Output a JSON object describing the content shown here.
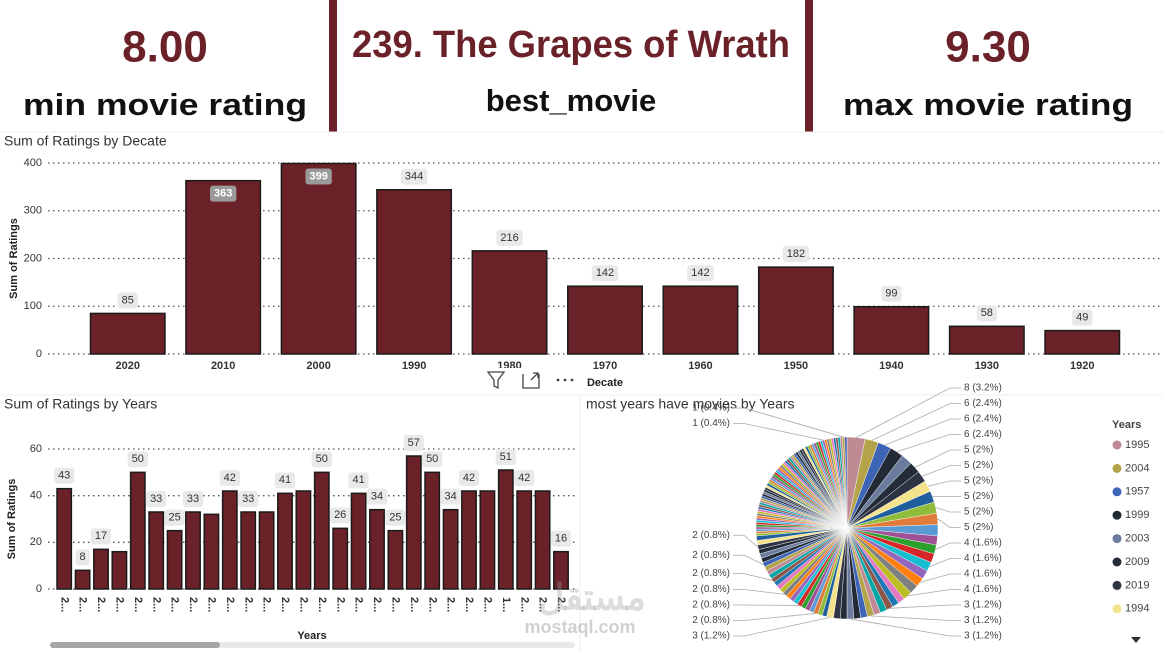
{
  "cards": [
    {
      "value": "8.00",
      "label": "min movie rating"
    },
    {
      "value": "239. The Grapes of Wrath",
      "label": "best_movie"
    },
    {
      "value": "9.30",
      "label": "max movie rating"
    }
  ],
  "watermark": {
    "arabic": "مستقل",
    "latin": "mostaql.com"
  },
  "chart_data": [
    {
      "type": "bar",
      "title": "Sum of Ratings by Decate",
      "x_label": "Decate",
      "y_label": "Sum of Ratings",
      "categories": [
        "2020",
        "2010",
        "2000",
        "1990",
        "1980",
        "1970",
        "1960",
        "1950",
        "1940",
        "1930",
        "1920"
      ],
      "values": [
        85,
        363,
        399,
        344,
        216,
        142,
        142,
        182,
        99,
        58,
        49
      ],
      "color": "#6b2128",
      "ylim": [
        0,
        400
      ],
      "yticks": [
        0,
        100,
        200,
        300,
        400
      ],
      "grid": true
    },
    {
      "type": "bar",
      "title": "Sum of Ratings by Years",
      "x_label": "Years",
      "y_label": "Sum of Ratings",
      "categories": [
        "2...",
        "2...",
        "2...",
        "2...",
        "2...",
        "2...",
        "2...",
        "2...",
        "2...",
        "2...",
        "2...",
        "2...",
        "2...",
        "2...",
        "2...",
        "2...",
        "2...",
        "2...",
        "2...",
        "2...",
        "2...",
        "2...",
        "2...",
        "2...",
        "1...",
        "2...",
        "2...",
        "2..."
      ],
      "values": [
        43,
        8,
        17,
        16,
        50,
        33,
        25,
        33,
        32,
        42,
        33,
        33,
        41,
        42,
        50,
        26,
        41,
        34,
        25,
        57,
        50,
        34,
        42,
        42,
        51,
        42,
        42,
        16
      ],
      "value_labels": [
        "43",
        "8",
        "17",
        null,
        "50",
        "33",
        "25",
        "33",
        null,
        "42",
        "33",
        null,
        "41",
        null,
        "50",
        "26",
        "41",
        "34",
        "25",
        "57",
        "50",
        "34",
        "42",
        null,
        "51",
        "42",
        null,
        "16"
      ],
      "color": "#6b2128",
      "ylim": [
        0,
        60
      ],
      "yticks": [
        0,
        20,
        40,
        60
      ],
      "grid": true
    },
    {
      "type": "pie",
      "title": "most years have movies by Years",
      "legend_title": "Years",
      "legend": "right",
      "categories": [
        "1995",
        "2004",
        "1957",
        "1999",
        "2003",
        "2009",
        "2019",
        "1994",
        null,
        null,
        null,
        null,
        null,
        null,
        null,
        null,
        null,
        null,
        null,
        null,
        null,
        null,
        null,
        null,
        null,
        null,
        null,
        null,
        null,
        null,
        null,
        null,
        null,
        null,
        null,
        null,
        null,
        null,
        null,
        null,
        null,
        null,
        null,
        null,
        null,
        null,
        null,
        null,
        null,
        null,
        null,
        null,
        null,
        null,
        null,
        null,
        null,
        null,
        null,
        null,
        null,
        null,
        null,
        null,
        null,
        null,
        null,
        null,
        null,
        null,
        null,
        null,
        null,
        null,
        null,
        null,
        null,
        null,
        null,
        null,
        null,
        null,
        null,
        null,
        null,
        null,
        null,
        null,
        null,
        null,
        null,
        null,
        null,
        null,
        null,
        null,
        null,
        null,
        null,
        null,
        null,
        null,
        null,
        null,
        null,
        null,
        null,
        null,
        null,
        null,
        null,
        null,
        null,
        null,
        null,
        null,
        null,
        null,
        null,
        null,
        null,
        null,
        null
      ],
      "values": [
        8,
        6,
        6,
        6,
        5,
        5,
        5,
        5,
        5,
        5,
        5,
        5,
        4,
        4,
        4,
        4,
        4,
        4,
        4,
        4,
        3,
        3,
        3,
        3,
        3,
        3,
        3,
        3,
        3,
        3,
        3,
        3,
        2,
        2,
        2,
        2,
        2,
        2,
        2,
        2,
        2,
        2,
        2,
        2,
        2,
        2,
        2,
        2,
        2,
        2,
        2,
        2,
        2,
        2,
        2,
        2,
        2,
        1,
        1,
        1,
        1,
        1,
        1,
        1,
        1,
        1,
        1,
        1,
        1,
        1,
        1,
        1,
        1,
        1,
        1,
        1,
        1,
        1,
        1,
        1,
        1,
        1,
        1,
        1,
        1,
        1,
        1,
        1,
        1,
        1,
        1,
        1,
        1,
        1,
        1,
        1,
        1,
        1,
        1,
        1,
        1,
        1,
        1,
        1,
        1,
        1,
        1,
        1,
        1,
        1,
        1,
        1,
        1,
        1,
        1,
        1,
        1,
        1,
        1,
        1,
        1,
        1,
        1
      ],
      "value_labels": [
        "8 (3.2%)",
        "6 (2.4%)",
        "6 (2.4%)",
        "6 (2.4%)",
        null,
        "5 (2%)",
        "5 (2%)",
        "5 (2%)",
        "5 (2%)",
        "5 (2%)",
        "5 (2%)",
        null,
        null,
        "4 (1.6%)",
        null,
        "4 (1.6%)",
        null,
        "4 (1.6%)",
        null,
        "4 (1.6%)",
        null,
        null,
        "3 (1.2%)",
        null,
        null,
        "3 (1.2%)",
        null,
        null,
        "3 (1.2%)",
        null,
        null,
        "3 (1.2%)",
        null,
        null,
        "2 (0.8%)",
        null,
        null,
        null,
        "2 (0.8%)",
        null,
        null,
        null,
        "2 (0.8%)",
        null,
        null,
        null,
        "2 (0.8%)",
        null,
        null,
        null,
        "2 (0.8%)",
        null,
        null,
        null,
        "2 (0.8%)",
        null,
        null,
        null,
        null,
        null,
        null,
        null,
        null,
        null,
        null,
        null,
        null,
        null,
        null,
        null,
        null,
        null,
        null,
        null,
        null,
        null,
        null,
        null,
        null,
        null,
        null,
        null,
        null,
        null,
        null,
        null,
        null,
        null,
        null,
        null,
        null,
        null,
        null,
        null,
        null,
        null,
        null,
        null,
        null,
        null,
        null,
        null,
        null,
        null,
        null,
        null,
        null,
        null,
        null,
        null,
        null,
        null,
        "1 (0.4%)",
        null,
        null,
        null,
        null,
        null,
        null,
        null,
        null,
        "1 (0.4%)",
        null
      ],
      "palette": [
        "#c08a95",
        "#b5a34a",
        "#3d64b5",
        "#222a35",
        "#6b7c9e",
        "#242c3a",
        "#2f3445",
        "#f5e28c",
        "#1f5f9e",
        "#8fbc3a",
        "#e07b39",
        "#5b9bd5",
        "#a05195",
        "#2ca02c",
        "#d62728",
        "#17becf",
        "#9467bd",
        "#ff7f0e",
        "#7f7f7f",
        "#bcbd22",
        "#e377c2",
        "#1f77b4",
        "#8c564b",
        "#00a6a6"
      ]
    }
  ]
}
